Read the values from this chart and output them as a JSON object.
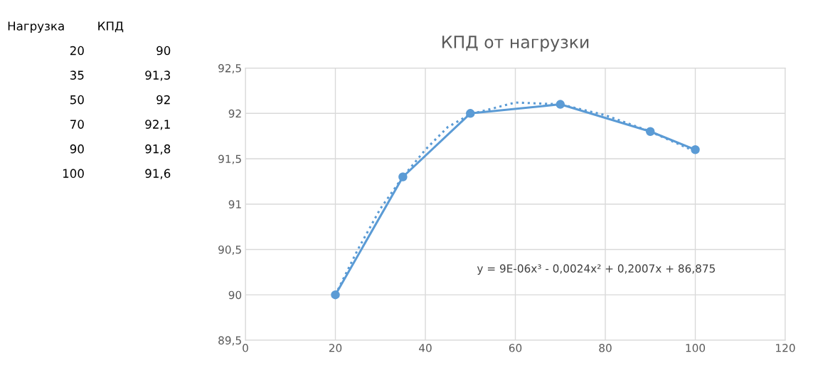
{
  "chart_data": [
    {
      "type": "other",
      "annotations": [
        "Нагрузка",
        "КПД",
        "20",
        "90",
        "35",
        "91,3",
        "50",
        "92",
        "70",
        "92,1",
        "90",
        "91,8",
        "100",
        "91,6"
      ]
    },
    {
      "type": "line",
      "title": "КПД от нагрузки",
      "x": [
        20,
        35,
        50,
        70,
        90,
        100
      ],
      "series": [
        {
          "type": "line",
          "color": "#5b9bd5",
          "values": [
            90,
            91.3,
            92,
            92.1,
            91.8,
            91.6
          ],
          "marker": "circle",
          "line_style": "solid"
        },
        {
          "type": "line",
          "color": "#5b9bd5",
          "x": [
            20,
            25,
            30,
            35,
            40,
            45,
            50,
            60,
            70,
            80,
            90,
            100
          ],
          "values": [
            90.0,
            90.5,
            90.95,
            91.3,
            91.6,
            91.85,
            91.99,
            92.12,
            92.1,
            91.98,
            91.8,
            91.58
          ],
          "marker": "none",
          "line_style": "dotted"
        }
      ],
      "xlim": [
        0,
        120
      ],
      "xticks": [
        0,
        20,
        40,
        60,
        80,
        100,
        120
      ],
      "ylim": [
        89.5,
        92.5
      ],
      "yticks": [
        {
          "value": 89.5,
          "label": "89,5"
        },
        90,
        {
          "value": 90.5,
          "label": "90,5"
        },
        91,
        {
          "value": 91.5,
          "label": "91,5"
        },
        92,
        {
          "value": 92.5,
          "label": "92,5"
        }
      ],
      "grid": true,
      "legend": false,
      "annotations": [
        "y = 9E-06x³ - 0,0024x² + 0,2007x + 86,875"
      ]
    }
  ]
}
